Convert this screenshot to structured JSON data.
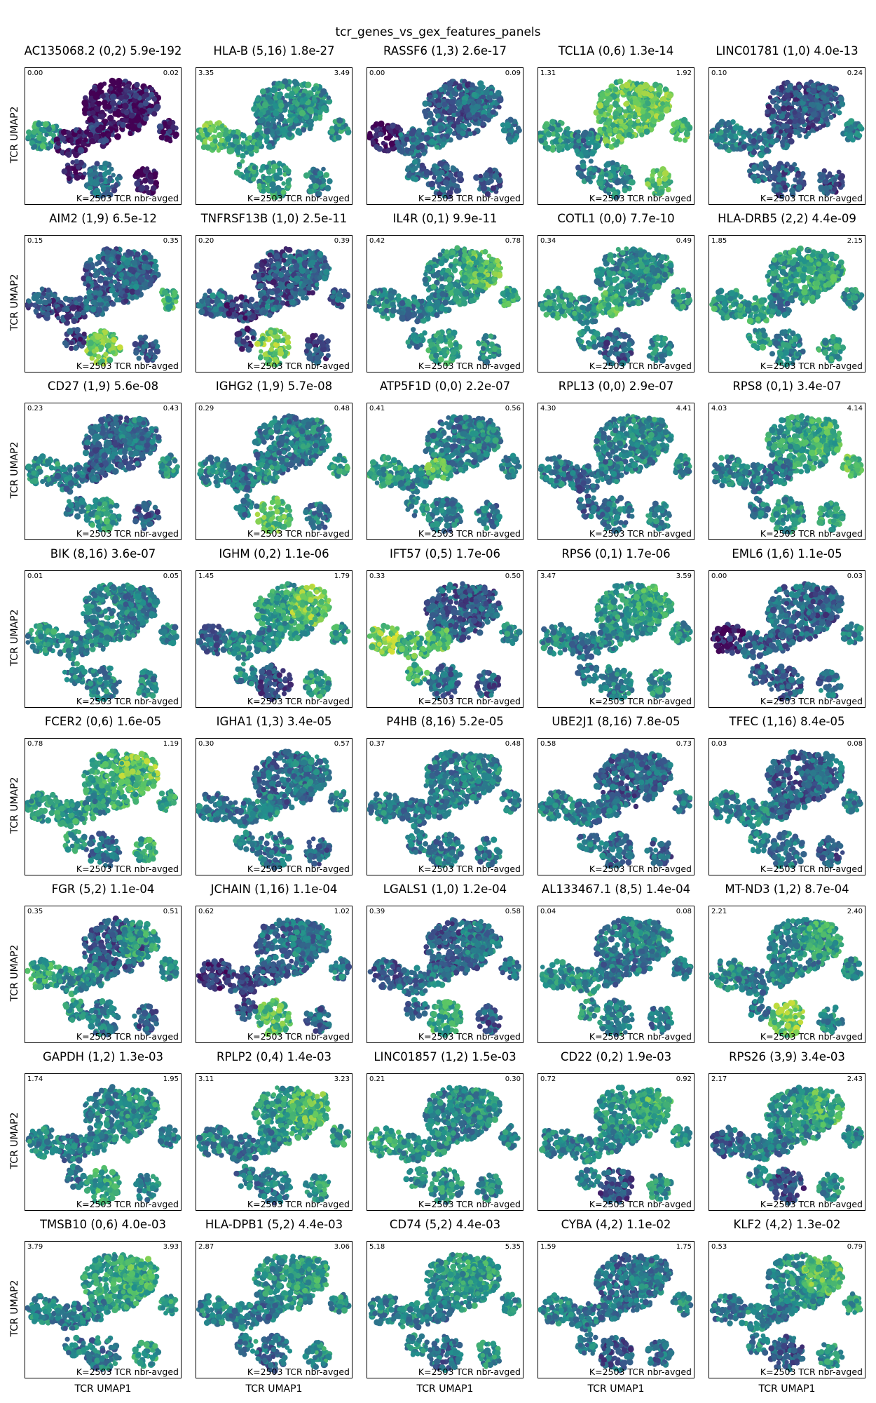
{
  "figure_title": "tcr_genes_vs_gex_features_panels",
  "axis_labels": {
    "x": "TCR UMAP1",
    "y": "TCR UMAP2"
  },
  "panel_footnote": "K=2503 TCR nbr-avged",
  "colormap": [
    "#440154",
    "#3b528b",
    "#21918c",
    "#5ec962",
    "#fde725"
  ],
  "chart_data": {
    "type": "scatter",
    "layout": "8x5 panel grid",
    "xlabel": "TCR UMAP1",
    "ylabel": "TCR UMAP2",
    "panels": [
      {
        "title": "AC135068.2 (0,2) 5.9e-192",
        "vmin": "0.00",
        "vmax": "0.02",
        "pattern": [
          0.05,
          0.1,
          0.55,
          0.08,
          0.15,
          0.35,
          0.1
        ]
      },
      {
        "title": "HLA-B (5,16) 1.8e-27",
        "vmin": "3.35",
        "vmax": "3.49",
        "pattern": [
          0.45,
          0.5,
          0.7,
          0.55,
          0.45,
          0.55,
          0.5
        ]
      },
      {
        "title": "RASSF6 (1,3) 2.6e-17",
        "vmin": "0.00",
        "vmax": "0.09",
        "pattern": [
          0.3,
          0.35,
          0.05,
          0.35,
          0.4,
          0.3,
          0.4
        ]
      },
      {
        "title": "TCL1A (0,6) 1.3e-14",
        "vmin": "1.31",
        "vmax": "1.92",
        "pattern": [
          0.7,
          0.75,
          0.55,
          0.4,
          0.7,
          0.45,
          0.7
        ]
      },
      {
        "title": "LINC01781 (1,0) 4.0e-13",
        "vmin": "0.10",
        "vmax": "0.24",
        "pattern": [
          0.25,
          0.3,
          0.45,
          0.35,
          0.3,
          0.3,
          0.4
        ]
      },
      {
        "title": "AIM2 (1,9) 6.5e-12",
        "vmin": "0.15",
        "vmax": "0.35",
        "pattern": [
          0.3,
          0.35,
          0.25,
          0.2,
          0.3,
          0.75,
          0.65
        ]
      },
      {
        "title": "TNFRSF13B (1,0) 2.5e-11",
        "vmin": "0.20",
        "vmax": "0.39",
        "pattern": [
          0.25,
          0.35,
          0.35,
          0.2,
          0.35,
          0.75,
          0.3
        ]
      },
      {
        "title": "IL4R (0,1) 9.9e-11",
        "vmin": "0.42",
        "vmax": "0.78",
        "pattern": [
          0.5,
          0.7,
          0.45,
          0.4,
          0.45,
          0.55,
          0.6
        ]
      },
      {
        "title": "COTL1 (0,0) 7.7e-10",
        "vmin": "0.34",
        "vmax": "0.49",
        "pattern": [
          0.45,
          0.5,
          0.55,
          0.5,
          0.65,
          0.3,
          0.5
        ]
      },
      {
        "title": "HLA-DRB5 (2,2) 4.4e-09",
        "vmin": "1.85",
        "vmax": "2.15",
        "pattern": [
          0.55,
          0.6,
          0.55,
          0.55,
          0.4,
          0.45,
          0.5
        ]
      },
      {
        "title": "CD27 (1,9) 5.6e-08",
        "vmin": "0.23",
        "vmax": "0.43",
        "pattern": [
          0.3,
          0.4,
          0.5,
          0.4,
          0.3,
          0.55,
          0.5
        ]
      },
      {
        "title": "IGHG2 (1,9) 5.7e-08",
        "vmin": "0.29",
        "vmax": "0.48",
        "pattern": [
          0.4,
          0.45,
          0.45,
          0.4,
          0.5,
          0.7,
          0.55
        ]
      },
      {
        "title": "ATP5F1D (0,0) 2.2e-07",
        "vmin": "0.41",
        "vmax": "0.56",
        "pattern": [
          0.4,
          0.45,
          0.55,
          0.45,
          0.7,
          0.4,
          0.45
        ]
      },
      {
        "title": "RPL13 (0,0) 2.9e-07",
        "vmin": "4.30",
        "vmax": "4.41",
        "pattern": [
          0.45,
          0.5,
          0.4,
          0.35,
          0.4,
          0.4,
          0.45
        ]
      },
      {
        "title": "RPS8 (0,1) 3.4e-07",
        "vmin": "4.03",
        "vmax": "4.14",
        "pattern": [
          0.55,
          0.65,
          0.45,
          0.4,
          0.4,
          0.5,
          0.7
        ]
      },
      {
        "title": "BIK (8,16) 3.6e-07",
        "vmin": "0.01",
        "vmax": "0.05",
        "pattern": [
          0.45,
          0.4,
          0.5,
          0.45,
          0.45,
          0.45,
          0.45
        ]
      },
      {
        "title": "IGHM (0,2) 1.1e-06",
        "vmin": "1.45",
        "vmax": "1.79",
        "pattern": [
          0.55,
          0.75,
          0.35,
          0.45,
          0.45,
          0.25,
          0.55
        ]
      },
      {
        "title": "IFT57 (0,5) 1.7e-06",
        "vmin": "0.33",
        "vmax": "0.50",
        "pattern": [
          0.3,
          0.3,
          0.8,
          0.65,
          0.7,
          0.35,
          0.45
        ]
      },
      {
        "title": "RPS6 (0,1) 1.7e-06",
        "vmin": "3.47",
        "vmax": "3.59",
        "pattern": [
          0.5,
          0.6,
          0.45,
          0.4,
          0.45,
          0.45,
          0.5
        ]
      },
      {
        "title": "EML6 (1,6) 1.1e-05",
        "vmin": "0.00",
        "vmax": "0.03",
        "pattern": [
          0.35,
          0.3,
          0.1,
          0.3,
          0.3,
          0.3,
          0.4
        ]
      },
      {
        "title": "FCER2 (0,6) 1.6e-05",
        "vmin": "0.78",
        "vmax": "1.19",
        "pattern": [
          0.6,
          0.75,
          0.55,
          0.55,
          0.5,
          0.35,
          0.6
        ]
      },
      {
        "title": "IGHA1 (1,3) 3.4e-05",
        "vmin": "0.30",
        "vmax": "0.57",
        "pattern": [
          0.35,
          0.4,
          0.4,
          0.4,
          0.45,
          0.4,
          0.45
        ]
      },
      {
        "title": "P4HB (8,16) 5.2e-05",
        "vmin": "0.37",
        "vmax": "0.48",
        "pattern": [
          0.4,
          0.45,
          0.45,
          0.4,
          0.4,
          0.4,
          0.4
        ]
      },
      {
        "title": "UBE2J1 (8,16) 7.8e-05",
        "vmin": "0.58",
        "vmax": "0.73",
        "pattern": [
          0.3,
          0.35,
          0.45,
          0.4,
          0.4,
          0.35,
          0.4
        ]
      },
      {
        "title": "TFEC (1,16) 8.4e-05",
        "vmin": "0.03",
        "vmax": "0.08",
        "pattern": [
          0.3,
          0.35,
          0.45,
          0.45,
          0.35,
          0.4,
          0.4
        ]
      },
      {
        "title": "FGR (5,2) 1.1e-04",
        "vmin": "0.35",
        "vmax": "0.51",
        "pattern": [
          0.3,
          0.55,
          0.6,
          0.5,
          0.45,
          0.4,
          0.45
        ]
      },
      {
        "title": "JCHAIN (1,16) 1.1e-04",
        "vmin": "0.62",
        "vmax": "1.02",
        "pattern": [
          0.35,
          0.4,
          0.15,
          0.25,
          0.3,
          0.7,
          0.4
        ]
      },
      {
        "title": "LGALS1 (1,0) 1.2e-04",
        "vmin": "0.39",
        "vmax": "0.58",
        "pattern": [
          0.3,
          0.4,
          0.3,
          0.35,
          0.4,
          0.6,
          0.4
        ]
      },
      {
        "title": "AL133467.1 (8,5) 1.4e-04",
        "vmin": "0.04",
        "vmax": "0.08",
        "pattern": [
          0.4,
          0.45,
          0.5,
          0.5,
          0.4,
          0.45,
          0.4
        ]
      },
      {
        "title": "MT-ND3 (1,2) 8.7e-04",
        "vmin": "2.21",
        "vmax": "2.40",
        "pattern": [
          0.45,
          0.6,
          0.5,
          0.4,
          0.45,
          0.75,
          0.45
        ]
      },
      {
        "title": "GAPDH (1,2) 1.3e-03",
        "vmin": "1.74",
        "vmax": "1.95",
        "pattern": [
          0.45,
          0.5,
          0.45,
          0.4,
          0.45,
          0.6,
          0.45
        ]
      },
      {
        "title": "RPLP2 (0,4) 1.4e-03",
        "vmin": "3.11",
        "vmax": "3.23",
        "pattern": [
          0.55,
          0.7,
          0.45,
          0.4,
          0.45,
          0.4,
          0.55
        ]
      },
      {
        "title": "LINC01857 (1,2) 1.5e-03",
        "vmin": "0.21",
        "vmax": "0.30",
        "pattern": [
          0.45,
          0.5,
          0.6,
          0.5,
          0.5,
          0.5,
          0.45
        ]
      },
      {
        "title": "CD22 (0,2) 1.9e-03",
        "vmin": "0.72",
        "vmax": "0.92",
        "pattern": [
          0.5,
          0.65,
          0.45,
          0.45,
          0.45,
          0.25,
          0.55
        ]
      },
      {
        "title": "RPS26 (3,9) 3.4e-03",
        "vmin": "2.17",
        "vmax": "2.43",
        "pattern": [
          0.5,
          0.65,
          0.35,
          0.45,
          0.4,
          0.25,
          0.45
        ]
      },
      {
        "title": "TMSB10 (0,6) 4.0e-03",
        "vmin": "3.79",
        "vmax": "3.93",
        "pattern": [
          0.55,
          0.65,
          0.45,
          0.4,
          0.45,
          0.4,
          0.55
        ]
      },
      {
        "title": "HLA-DPB1 (5,2) 4.4e-03",
        "vmin": "2.87",
        "vmax": "3.06",
        "pattern": [
          0.5,
          0.55,
          0.45,
          0.45,
          0.4,
          0.35,
          0.5
        ]
      },
      {
        "title": "CD74 (5,2) 4.4e-03",
        "vmin": "5.18",
        "vmax": "5.35",
        "pattern": [
          0.5,
          0.55,
          0.45,
          0.45,
          0.4,
          0.35,
          0.5
        ]
      },
      {
        "title": "CYBA (4,2) 1.1e-02",
        "vmin": "1.59",
        "vmax": "1.75",
        "pattern": [
          0.35,
          0.4,
          0.45,
          0.4,
          0.4,
          0.3,
          0.45
        ]
      },
      {
        "title": "KLF2 (4,2) 1.3e-02",
        "vmin": "0.53",
        "vmax": "0.79",
        "pattern": [
          0.5,
          0.7,
          0.4,
          0.45,
          0.4,
          0.3,
          0.55
        ]
      }
    ]
  }
}
